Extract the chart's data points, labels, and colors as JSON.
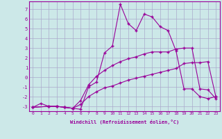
{
  "xlabel": "Windchill (Refroidissement éolien,°C)",
  "x_ticks": [
    0,
    1,
    2,
    3,
    4,
    5,
    6,
    7,
    8,
    9,
    10,
    11,
    12,
    13,
    14,
    15,
    16,
    17,
    18,
    19,
    20,
    21,
    22,
    23
  ],
  "ylim": [
    -3.5,
    7.8
  ],
  "xlim": [
    -0.5,
    23.5
  ],
  "yticks": [
    -3,
    -2,
    -1,
    0,
    1,
    2,
    3,
    4,
    5,
    6,
    7
  ],
  "bg_color": "#cce8e8",
  "grid_color": "#aaaacc",
  "line_color": "#990099",
  "line1_x": [
    0,
    1,
    2,
    3,
    4,
    5,
    6,
    7,
    8,
    9,
    10,
    11,
    12,
    13,
    14,
    15,
    16,
    17,
    18,
    19,
    20,
    21,
    22,
    23
  ],
  "line1_y": [
    -3.1,
    -2.7,
    -3.0,
    -3.0,
    -3.1,
    -3.2,
    -3.3,
    -1.0,
    -0.5,
    2.5,
    3.2,
    7.5,
    5.5,
    4.8,
    6.5,
    6.2,
    5.2,
    4.8,
    2.7,
    -1.2,
    -1.2,
    -2.0,
    -2.2,
    -2.0
  ],
  "line2_x": [
    0,
    2,
    3,
    4,
    5,
    6,
    7,
    8,
    9,
    10,
    11,
    12,
    13,
    14,
    15,
    16,
    17,
    18,
    19,
    20,
    21,
    22,
    23
  ],
  "line2_y": [
    -3.1,
    -3.0,
    -3.0,
    -3.1,
    -3.2,
    -2.4,
    -0.8,
    0.1,
    0.7,
    1.2,
    1.6,
    1.9,
    2.1,
    2.4,
    2.6,
    2.6,
    2.6,
    2.9,
    3.0,
    3.0,
    -1.2,
    -1.3,
    -2.2
  ],
  "line3_x": [
    0,
    2,
    3,
    4,
    5,
    6,
    7,
    8,
    9,
    10,
    11,
    12,
    13,
    14,
    15,
    16,
    17,
    18,
    19,
    20,
    21,
    22,
    23
  ],
  "line3_y": [
    -3.1,
    -3.0,
    -3.0,
    -3.1,
    -3.2,
    -2.8,
    -2.0,
    -1.5,
    -1.1,
    -0.9,
    -0.6,
    -0.3,
    -0.1,
    0.1,
    0.3,
    0.5,
    0.7,
    0.9,
    1.4,
    1.5,
    1.5,
    1.6,
    -2.0
  ]
}
